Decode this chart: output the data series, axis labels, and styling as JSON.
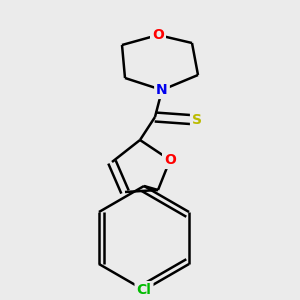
{
  "background_color": "#ebebeb",
  "bond_color": "#000000",
  "bond_width": 1.8,
  "figsize": [
    3.0,
    3.0
  ],
  "dpi": 100,
  "atom_labels": {
    "O_morph": {
      "label": "O",
      "color": "#ff0000",
      "fontsize": 10
    },
    "N": {
      "label": "N",
      "color": "#0000ee",
      "fontsize": 10
    },
    "S": {
      "label": "S",
      "color": "#cccc00",
      "fontsize": 10
    },
    "O_furan": {
      "label": "O",
      "color": "#ff0000",
      "fontsize": 10
    },
    "Cl": {
      "label": "Cl",
      "color": "#00bb00",
      "fontsize": 10
    }
  }
}
